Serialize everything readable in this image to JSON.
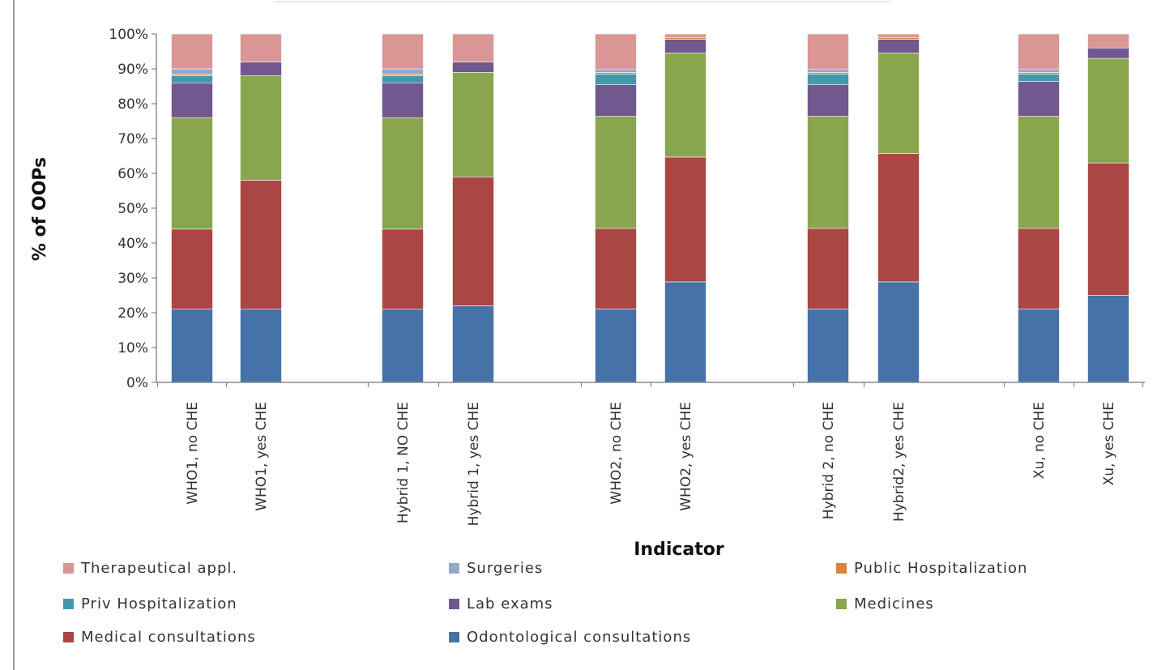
{
  "chart_data": {
    "type": "bar",
    "stacked": true,
    "percent_stacked": true,
    "xlabel": "Indicator",
    "ylabel": "% of OOPs",
    "ylim": [
      0,
      100
    ],
    "yticks": [
      "0%",
      "10%",
      "20%",
      "30%",
      "40%",
      "50%",
      "60%",
      "70%",
      "80%",
      "90%",
      "100%"
    ],
    "categories": [
      "WHO1, no CHE",
      "WHO1, yes CHE",
      "Hybrid 1, NO CHE",
      "Hybrid 1, yes CHE",
      "WHO2, no CHE",
      "WHO2, yes CHE",
      "Hybrid 2, no CHE",
      "Hybrid2, yes CHE",
      "Xu, no CHE",
      "Xu, yes CHE"
    ],
    "groups": [
      [
        0,
        1
      ],
      [
        2,
        3
      ],
      [
        4,
        5
      ],
      [
        6,
        7
      ],
      [
        8,
        9
      ]
    ],
    "series": [
      {
        "name": "Odontological consultations",
        "color": "#4572A7",
        "values": [
          21,
          21,
          21,
          22,
          21,
          29,
          21,
          29,
          21,
          25
        ]
      },
      {
        "name": "Medical consultations",
        "color": "#AA4643",
        "values": [
          23,
          37,
          23,
          37,
          23,
          36,
          23,
          37,
          23,
          38
        ]
      },
      {
        "name": "Medicines",
        "color": "#89A54E",
        "values": [
          32,
          30,
          32,
          30,
          32,
          30,
          32,
          29,
          32,
          30
        ]
      },
      {
        "name": "Lab exams",
        "color": "#71588F",
        "values": [
          10,
          4,
          10,
          3,
          9,
          4,
          9,
          4,
          10,
          3
        ]
      },
      {
        "name": "Priv Hospitalization",
        "color": "#4198AF",
        "values": [
          2,
          0,
          2,
          0,
          3,
          0,
          3,
          0,
          2,
          0
        ]
      },
      {
        "name": "Public Hospitalization",
        "color": "#DB843D",
        "values": [
          0.5,
          0,
          0.5,
          0,
          0.5,
          0.5,
          0.5,
          0.5,
          0.5,
          0
        ]
      },
      {
        "name": "Surgeries",
        "color": "#93A9CF",
        "values": [
          1.5,
          0,
          1.5,
          0,
          1,
          0,
          1,
          0,
          1,
          0
        ]
      },
      {
        "name": "Therapeutical appl.",
        "color": "#D99694",
        "values": [
          10,
          8,
          10,
          8,
          10,
          1,
          10,
          1,
          10,
          4
        ]
      }
    ],
    "legend_order": [
      "Therapeutical appl.",
      "Surgeries",
      "Public Hospitalization",
      "Priv Hospitalization",
      "Lab exams",
      "Medicines",
      "Medical consultations",
      "Odontological consultations"
    ],
    "legend_position": "bottom",
    "grid": false
  }
}
